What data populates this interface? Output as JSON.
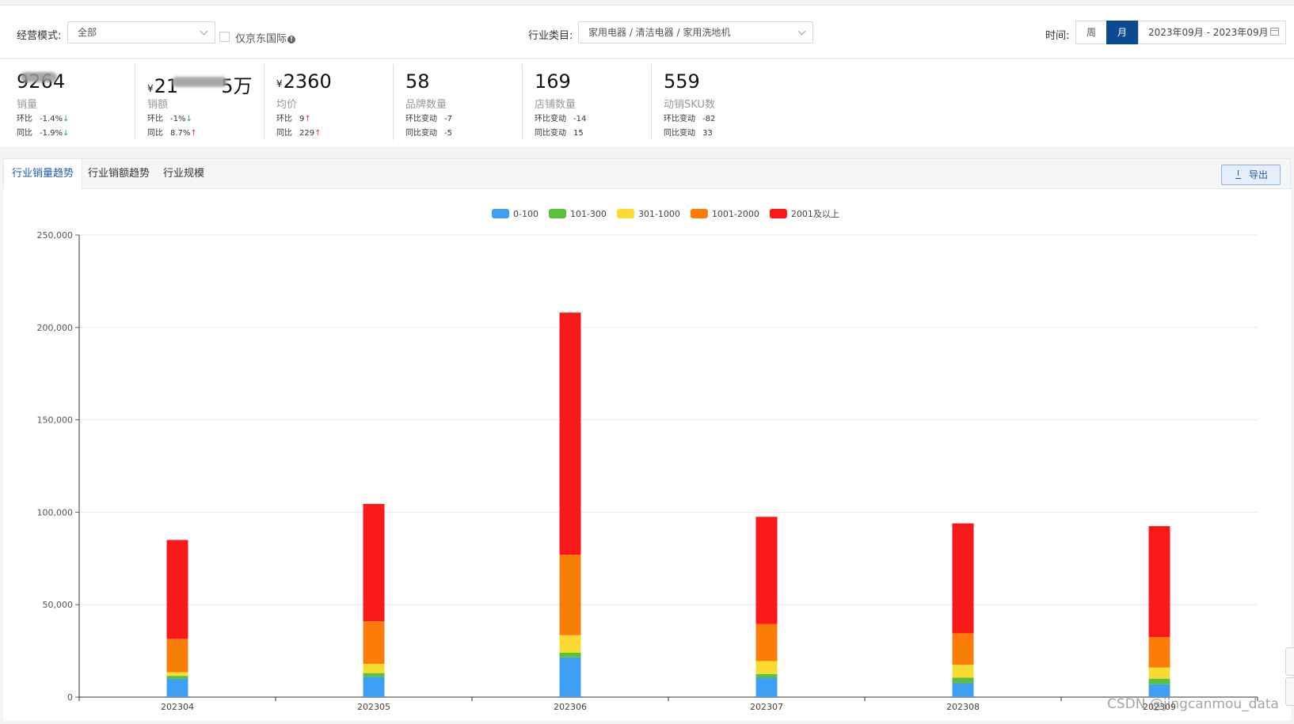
{
  "filters": {
    "mode_label": "经营模式:",
    "mode_value": "全部",
    "jd_intl_label": "仅京东国际",
    "industry_label": "行业类目:",
    "industry_value": "家用电器 / 清洁电器 / 家用洗地机",
    "time_label": "时间:",
    "week_label": "周",
    "month_label": "月",
    "date_range": "2023年09月 - 2023年09月"
  },
  "metrics": [
    {
      "value_start": "92",
      "value_end": "64",
      "name": "销量",
      "l1_label": "环比",
      "l1_value": "-1.4%",
      "l1_dir": "down",
      "l2_label": "同比",
      "l2_value": "-1.9%",
      "l2_dir": "down"
    },
    {
      "currency": "¥",
      "value_start": "21",
      "value_end": "5万",
      "name": "销额",
      "l1_label": "环比",
      "l1_value": "-1%",
      "l1_dir": "down",
      "l2_label": "同比",
      "l2_value": "8.7%",
      "l2_dir": "up"
    },
    {
      "currency": "¥",
      "value": "2360",
      "name": "均价",
      "l1_label": "环比",
      "l1_value": "9",
      "l1_dir": "up",
      "l2_label": "同比",
      "l2_value": "229",
      "l2_dir": "up"
    },
    {
      "value": "58",
      "name": "品牌数量",
      "l1_label": "环比变动",
      "l1_value": "-7",
      "l2_label": "同比变动",
      "l2_value": "-5"
    },
    {
      "value": "169",
      "name": "店铺数量",
      "l1_label": "环比变动",
      "l1_value": "-14",
      "l2_label": "同比变动",
      "l2_value": "15"
    },
    {
      "value": "559",
      "name": "动销SKU数",
      "l1_label": "环比变动",
      "l1_value": "-82",
      "l2_label": "同比变动",
      "l2_value": "33"
    }
  ],
  "tabs": [
    "行业销量趋势",
    "行业销额趋势",
    "行业规模"
  ],
  "export_label": "导出",
  "watermark": "CSDN @jingcanmou_data",
  "chart_data": {
    "type": "bar",
    "stacked": true,
    "legend_position": "top",
    "categories": [
      "202304",
      "202305",
      "202306",
      "202307",
      "202308",
      "202309"
    ],
    "ylim": [
      0,
      250000
    ],
    "yticks": [
      "0",
      "50,000",
      "100,000",
      "150,000",
      "200,000",
      "250,000"
    ],
    "grid": true,
    "series": [
      {
        "name": "0-100",
        "color": "#3e9ff5",
        "values": [
          10000,
          11000,
          21500,
          10500,
          7500,
          7000
        ]
      },
      {
        "name": "101-300",
        "color": "#5cc13a",
        "values": [
          1500,
          2000,
          2500,
          2000,
          3000,
          3000
        ]
      },
      {
        "name": "301-1000",
        "color": "#fadb2f",
        "values": [
          2000,
          5000,
          9500,
          7000,
          7000,
          6000
        ]
      },
      {
        "name": "1001-2000",
        "color": "#fb7d08",
        "values": [
          18000,
          23000,
          43500,
          20000,
          17000,
          16500
        ]
      },
      {
        "name": "2001及以上",
        "color": "#fb1818",
        "values": [
          53500,
          63500,
          131000,
          58000,
          59500,
          60000
        ]
      }
    ]
  }
}
